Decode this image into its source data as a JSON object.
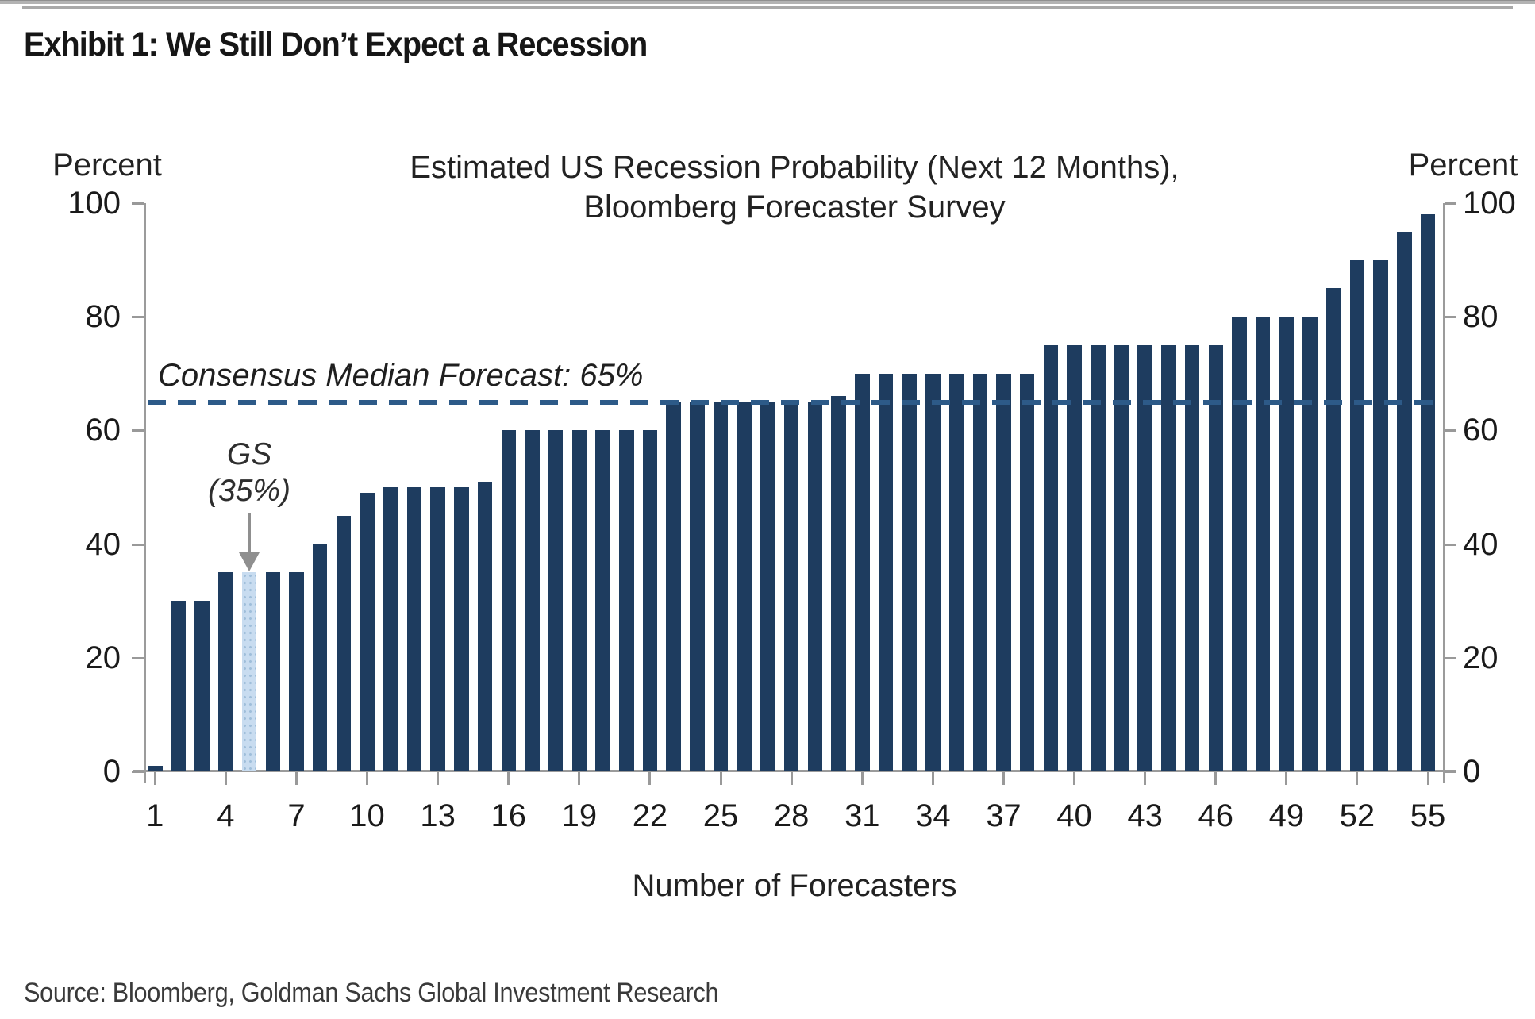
{
  "page": {
    "exhibit_title": "Exhibit 1: We Still Don’t Expect a Recession",
    "source_line": "Source: Bloomberg, Goldman Sachs Global Investment Research"
  },
  "chart_data": {
    "type": "bar",
    "title_lines": [
      "Estimated US Recession Probability (Next 12 Months),",
      "Bloomberg Forecaster Survey"
    ],
    "left_axis_label": "Percent",
    "right_axis_label": "Percent",
    "xlabel": "Number of Forecasters",
    "ylim": [
      0,
      100
    ],
    "y_ticks": [
      0,
      20,
      40,
      60,
      80,
      100
    ],
    "x_tick_labels": [
      1,
      4,
      7,
      10,
      13,
      16,
      19,
      22,
      25,
      28,
      31,
      34,
      37,
      40,
      43,
      46,
      49,
      52,
      55
    ],
    "categories_note": "x = forecaster rank 1..55, sorted ascending by forecast",
    "values": [
      1,
      30,
      30,
      35,
      35,
      35,
      35,
      40,
      45,
      49,
      50,
      50,
      50,
      50,
      51,
      60,
      60,
      60,
      60,
      60,
      60,
      60,
      65,
      65,
      65,
      65,
      65,
      65,
      65,
      66,
      70,
      70,
      70,
      70,
      70,
      70,
      70,
      70,
      75,
      75,
      75,
      75,
      75,
      75,
      75,
      75,
      80,
      80,
      80,
      80,
      85,
      90,
      90,
      95,
      98
    ],
    "highlight_index": 4,
    "highlight_forecaster_number": 5,
    "highlight_label_lines": [
      "GS",
      "(35%)"
    ],
    "consensus_line": {
      "label": "Consensus Median Forecast: 65%",
      "value": 65
    },
    "legend_position": "none",
    "grid": false,
    "colors": {
      "bar": "#1e3c5f",
      "highlight_bar": "#c8dcf0",
      "highlight_dot": "#9fbeda",
      "dashed_line": "#2d5a88",
      "axis": "#9b9b9b",
      "arrow": "#8f8f8f"
    }
  }
}
